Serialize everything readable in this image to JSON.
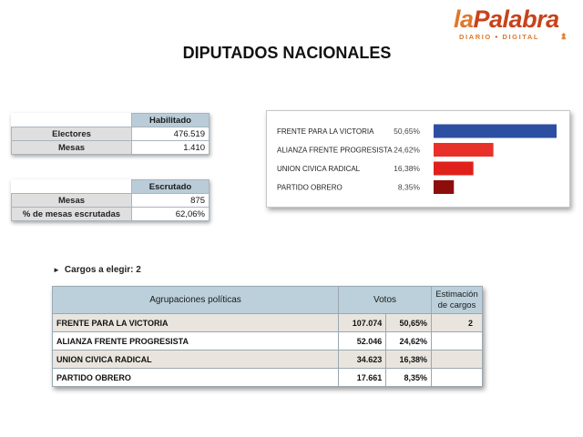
{
  "brand": {
    "name_part1": "la",
    "name_part2": "Palabra",
    "tagline_1": "DIARIO",
    "tagline_sep": "•",
    "tagline_2": "DIGITAL"
  },
  "page_title": "DIPUTADOS NACIONALES",
  "habilitado": {
    "header": "Habilitado",
    "rows": [
      {
        "label": "Electores",
        "value": "476.519"
      },
      {
        "label": "Mesas",
        "value": "1.410"
      }
    ]
  },
  "escrutado": {
    "header": "Escrutado",
    "rows": [
      {
        "label": "Mesas",
        "value": "875"
      },
      {
        "label": "% de mesas escrutadas",
        "value": "62,06%"
      }
    ]
  },
  "bar_chart": {
    "items": [
      {
        "label": "FRENTE PARA LA VICTORIA",
        "pct_text": "50,65%",
        "value": 50.65,
        "color": "#2d4fa2"
      },
      {
        "label": "ALIANZA FRENTE PROGRESISTA",
        "pct_text": "24,62%",
        "value": 24.62,
        "color": "#e8312b"
      },
      {
        "label": "UNION CIVICA RADICAL",
        "pct_text": "16,38%",
        "value": 16.38,
        "color": "#e0201b"
      },
      {
        "label": "PARTIDO OBRERO",
        "pct_text": "8,35%",
        "value": 8.35,
        "color": "#8d0d0d"
      }
    ]
  },
  "cargos": {
    "text": "Cargos a elegir: 2"
  },
  "results": {
    "headers": {
      "party": "Agrupaciones políticas",
      "votes": "Votos",
      "estimate_line1": "Estimación",
      "estimate_line2": "de cargos"
    },
    "rows": [
      {
        "party": "FRENTE PARA LA VICTORIA",
        "votes": "107.074",
        "pct": "50,65%",
        "estimate": "2"
      },
      {
        "party": "ALIANZA FRENTE PROGRESISTA",
        "votes": "52.046",
        "pct": "24,62%",
        "estimate": ""
      },
      {
        "party": "UNION CIVICA RADICAL",
        "votes": "34.623",
        "pct": "16,38%",
        "estimate": ""
      },
      {
        "party": "PARTIDO OBRERO",
        "votes": "17.661",
        "pct": "8,35%",
        "estimate": ""
      }
    ]
  }
}
